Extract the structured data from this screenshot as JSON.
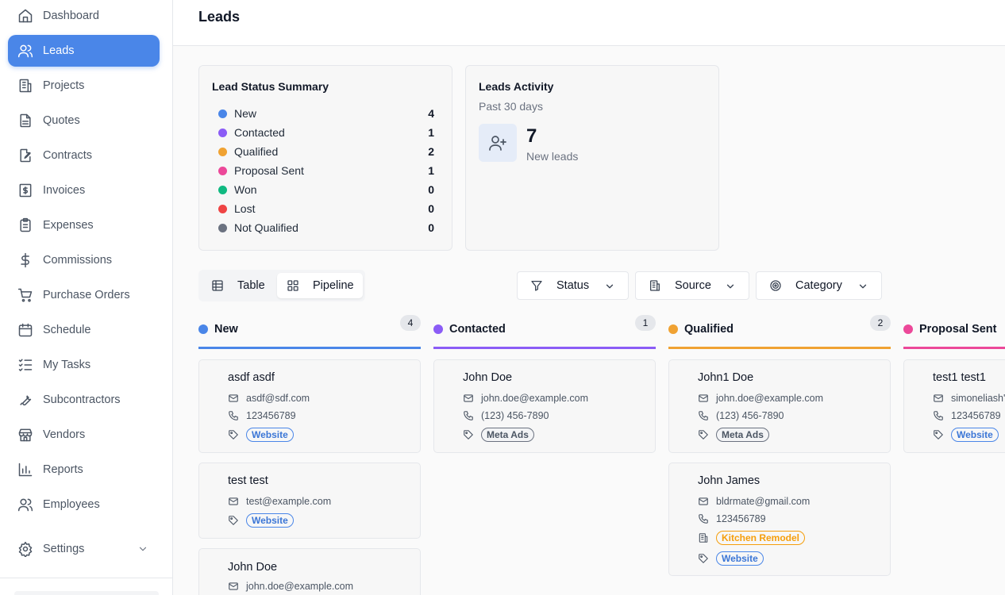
{
  "sidebar": {
    "items": [
      {
        "label": "Dashboard",
        "icon": "home-icon"
      },
      {
        "label": "Leads",
        "icon": "users-icon",
        "active": true
      },
      {
        "label": "Projects",
        "icon": "building-icon"
      },
      {
        "label": "Quotes",
        "icon": "file-text-icon"
      },
      {
        "label": "Contracts",
        "icon": "file-signature-icon"
      },
      {
        "label": "Invoices",
        "icon": "invoice-dollar-icon"
      },
      {
        "label": "Expenses",
        "icon": "clipboard-icon"
      },
      {
        "label": "Commissions",
        "icon": "dollar-icon"
      },
      {
        "label": "Purchase Orders",
        "icon": "cart-icon"
      },
      {
        "label": "Schedule",
        "icon": "calendar-icon"
      },
      {
        "label": "My Tasks",
        "icon": "task-list-icon"
      },
      {
        "label": "Subcontractors",
        "icon": "wrench-icon"
      },
      {
        "label": "Vendors",
        "icon": "store-icon"
      },
      {
        "label": "Reports",
        "icon": "bar-chart-icon"
      },
      {
        "label": "Employees",
        "icon": "user-group-icon"
      }
    ],
    "settings_label": "Settings"
  },
  "header": {
    "title": "Leads"
  },
  "summary": {
    "title": "Lead Status Summary",
    "rows": [
      {
        "label": "New",
        "count": "4",
        "color": "#4a86e8"
      },
      {
        "label": "Contacted",
        "count": "1",
        "color": "#8b5cf6"
      },
      {
        "label": "Qualified",
        "count": "2",
        "color": "#f0a232"
      },
      {
        "label": "Proposal Sent",
        "count": "1",
        "color": "#ec4899"
      },
      {
        "label": "Won",
        "count": "0",
        "color": "#10b981"
      },
      {
        "label": "Lost",
        "count": "0",
        "color": "#ef4444"
      },
      {
        "label": "Not Qualified",
        "count": "0",
        "color": "#6b7280"
      }
    ]
  },
  "activity": {
    "title": "Leads Activity",
    "subtitle": "Past 30 days",
    "count": "7",
    "count_label": "New leads"
  },
  "view_toggle": {
    "table_label": "Table",
    "pipeline_label": "Pipeline",
    "selected": "Pipeline"
  },
  "filters": {
    "status_label": "Status",
    "source_label": "Source",
    "category_label": "Category"
  },
  "pipeline": {
    "columns": [
      {
        "name": "New",
        "count": "4",
        "color": "#4a86e8",
        "cards": [
          {
            "name": "asdf asdf",
            "email": "asdf@sdf.com",
            "phone": "123456789",
            "source": "Website"
          },
          {
            "name": "test test",
            "email": "test@example.com",
            "source": "Website"
          },
          {
            "name": "John Doe",
            "email": "john.doe@example.com"
          }
        ]
      },
      {
        "name": "Contacted",
        "count": "1",
        "color": "#8b5cf6",
        "cards": [
          {
            "name": "John Doe",
            "email": "john.doe@example.com",
            "phone": "(123) 456-7890",
            "source": "Meta Ads"
          }
        ]
      },
      {
        "name": "Qualified",
        "count": "2",
        "color": "#f0a232",
        "cards": [
          {
            "name": "John1 Doe",
            "email": "john.doe@example.com",
            "phone": "(123) 456-7890",
            "source": "Meta Ads"
          },
          {
            "name": "John James",
            "email": "bldrmate@gmail.com",
            "phone": "123456789",
            "category": "Kitchen Remodel",
            "source": "Website"
          }
        ]
      },
      {
        "name": "Proposal Sent",
        "color": "#ec4899",
        "cards": [
          {
            "name": "test1 test1",
            "email": "simoneliash'",
            "phone": "123456789",
            "source": "Website"
          }
        ]
      }
    ]
  }
}
